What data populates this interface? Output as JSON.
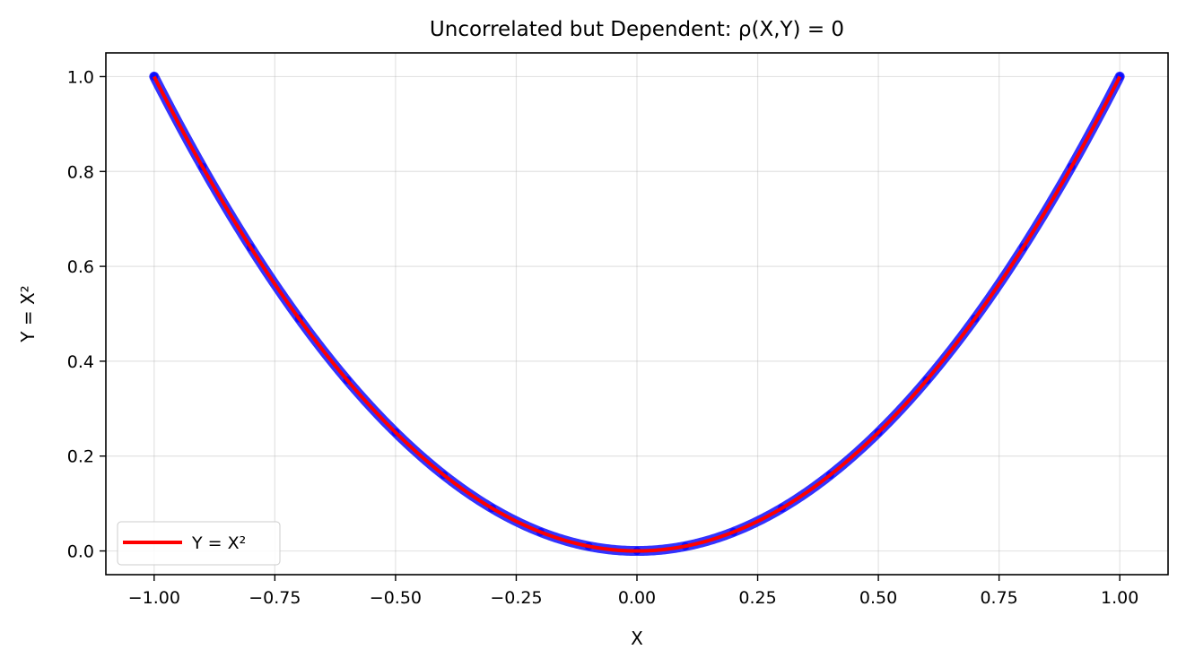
{
  "chart_data": {
    "type": "scatter",
    "title": "Uncorrelated but Dependent: ρ(X,Y) = 0",
    "xlabel": "X",
    "ylabel": "Y = X²",
    "xlim": [
      -1.1,
      1.1
    ],
    "ylim": [
      -0.05,
      1.05
    ],
    "x_ticks": [
      -1.0,
      -0.75,
      -0.5,
      -0.25,
      0.0,
      0.25,
      0.5,
      0.75,
      1.0
    ],
    "x_tick_labels": [
      "−1.00",
      "−0.75",
      "−0.50",
      "−0.25",
      "0.00",
      "0.25",
      "0.50",
      "0.75",
      "1.00"
    ],
    "y_ticks": [
      0.0,
      0.2,
      0.4,
      0.6,
      0.8,
      1.0
    ],
    "y_tick_labels": [
      "0.0",
      "0.2",
      "0.4",
      "0.6",
      "0.8",
      "1.0"
    ],
    "grid": true,
    "legend_position": "lower-left",
    "series": [
      {
        "kind": "scatter",
        "color": "#0000ff",
        "x": [
          -1.0,
          -0.9,
          -0.8,
          -0.7,
          -0.6,
          -0.5,
          -0.4,
          -0.3,
          -0.2,
          -0.1,
          0.0,
          0.1,
          0.2,
          0.3,
          0.4,
          0.5,
          0.6,
          0.7,
          0.8,
          0.9,
          1.0
        ],
        "y": [
          1.0,
          0.81,
          0.64,
          0.49,
          0.36,
          0.25,
          0.16,
          0.09,
          0.04,
          0.01,
          0.0,
          0.01,
          0.04,
          0.09,
          0.16,
          0.25,
          0.36,
          0.49,
          0.64,
          0.81,
          1.0
        ]
      },
      {
        "kind": "line",
        "name": "Y = X²",
        "color": "#ff0000",
        "x": [
          -1.0,
          -0.9,
          -0.8,
          -0.7,
          -0.6,
          -0.5,
          -0.4,
          -0.3,
          -0.2,
          -0.1,
          0.0,
          0.1,
          0.2,
          0.3,
          0.4,
          0.5,
          0.6,
          0.7,
          0.8,
          0.9,
          1.0
        ],
        "y": [
          1.0,
          0.81,
          0.64,
          0.49,
          0.36,
          0.25,
          0.16,
          0.09,
          0.04,
          0.01,
          0.0,
          0.01,
          0.04,
          0.09,
          0.16,
          0.25,
          0.36,
          0.49,
          0.64,
          0.81,
          1.0
        ]
      }
    ]
  }
}
